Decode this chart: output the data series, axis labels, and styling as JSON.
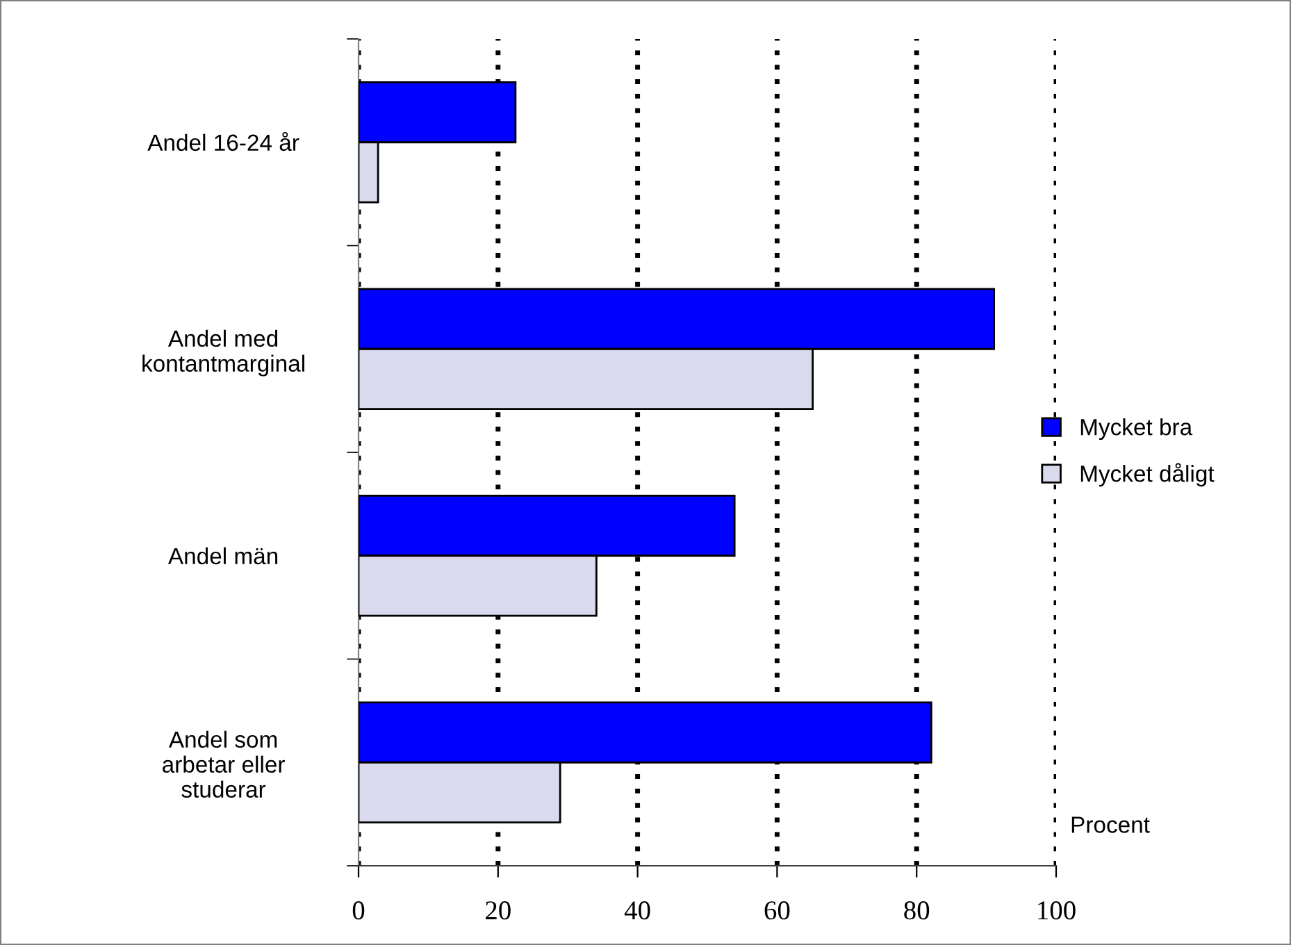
{
  "chart_data": {
    "type": "bar",
    "orientation": "horizontal",
    "categories": [
      "Andel 16-24 år",
      "Andel med\nkontantmarginal",
      "Andel män",
      "Andel som\narbetar eller\nstuderar"
    ],
    "series": [
      {
        "name": "Mycket bra",
        "color": "#0000ff",
        "values": [
          22.5,
          91.1,
          53.9,
          82.1
        ]
      },
      {
        "name": "Mycket dåligt",
        "color": "#dadaee",
        "values": [
          2.8,
          65.1,
          34.1,
          28.9
        ]
      }
    ],
    "xlim": [
      0,
      100
    ],
    "xticks": [
      0,
      20,
      40,
      60,
      80,
      100
    ],
    "grid": "x",
    "legend": "right",
    "annotations": [
      "Procent"
    ]
  }
}
